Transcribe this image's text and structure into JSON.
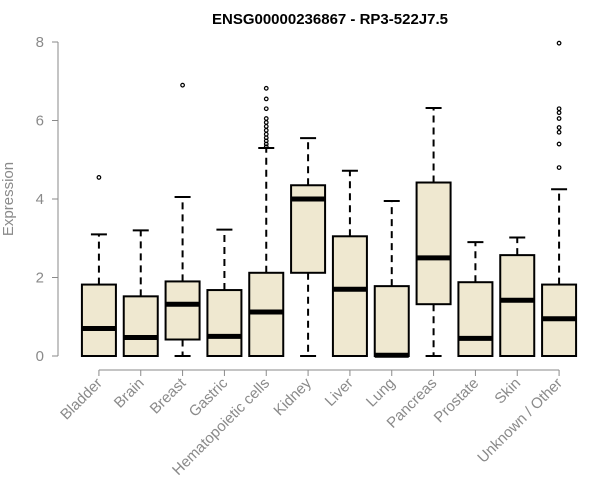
{
  "chart_data": {
    "type": "box",
    "title": "ENSG00000236867 - RP3-522J7.5",
    "xlabel": "",
    "ylabel": "Expression",
    "ylim": [
      0,
      8
    ],
    "yticks": [
      0,
      2,
      4,
      6,
      8
    ],
    "grid": false,
    "colors": {
      "box_fill": "#efe8d0",
      "stroke": "#000000",
      "axis": "#8a8a8a",
      "text": "#8a8a8a"
    },
    "categories": [
      "Bladder",
      "Brain",
      "Breast",
      "Gastric",
      "Hematopoietic cells",
      "Kidney",
      "Liver",
      "Lung",
      "Pancreas",
      "Prostate",
      "Skin",
      "Unknown / Other"
    ],
    "boxes": [
      {
        "min": 0,
        "q1": 0,
        "median": 0.7,
        "q3": 1.82,
        "max": 3.1,
        "outliers": [
          4.55
        ]
      },
      {
        "min": 0,
        "q1": 0,
        "median": 0.47,
        "q3": 1.52,
        "max": 3.2,
        "outliers": []
      },
      {
        "min": 0,
        "q1": 0.42,
        "median": 1.32,
        "q3": 1.9,
        "max": 4.05,
        "outliers": [
          6.9
        ]
      },
      {
        "min": 0,
        "q1": 0,
        "median": 0.5,
        "q3": 1.68,
        "max": 3.22,
        "outliers": []
      },
      {
        "min": 0,
        "q1": 0,
        "median": 1.12,
        "q3": 2.12,
        "max": 5.3,
        "outliers": [
          5.33,
          5.4,
          5.48,
          5.56,
          5.65,
          5.75,
          5.85,
          5.95,
          6.05,
          6.3,
          6.55,
          6.82
        ]
      },
      {
        "min": 0,
        "q1": 2.12,
        "median": 4.0,
        "q3": 4.35,
        "max": 5.55,
        "outliers": []
      },
      {
        "min": 0,
        "q1": 0,
        "median": 1.7,
        "q3": 3.05,
        "max": 4.72,
        "outliers": []
      },
      {
        "min": 0,
        "q1": 0,
        "median": 0.02,
        "q3": 1.78,
        "max": 3.95,
        "outliers": []
      },
      {
        "min": 0,
        "q1": 1.32,
        "median": 2.5,
        "q3": 4.42,
        "max": 6.32,
        "outliers": []
      },
      {
        "min": 0,
        "q1": 0,
        "median": 0.45,
        "q3": 1.88,
        "max": 2.9,
        "outliers": []
      },
      {
        "min": 0,
        "q1": 0,
        "median": 1.42,
        "q3": 2.57,
        "max": 3.02,
        "outliers": []
      },
      {
        "min": 0,
        "q1": 0,
        "median": 0.95,
        "q3": 1.82,
        "max": 4.25,
        "outliers": [
          4.8,
          5.4,
          5.7,
          5.82,
          6.05,
          6.2,
          6.3,
          7.97
        ]
      }
    ]
  }
}
